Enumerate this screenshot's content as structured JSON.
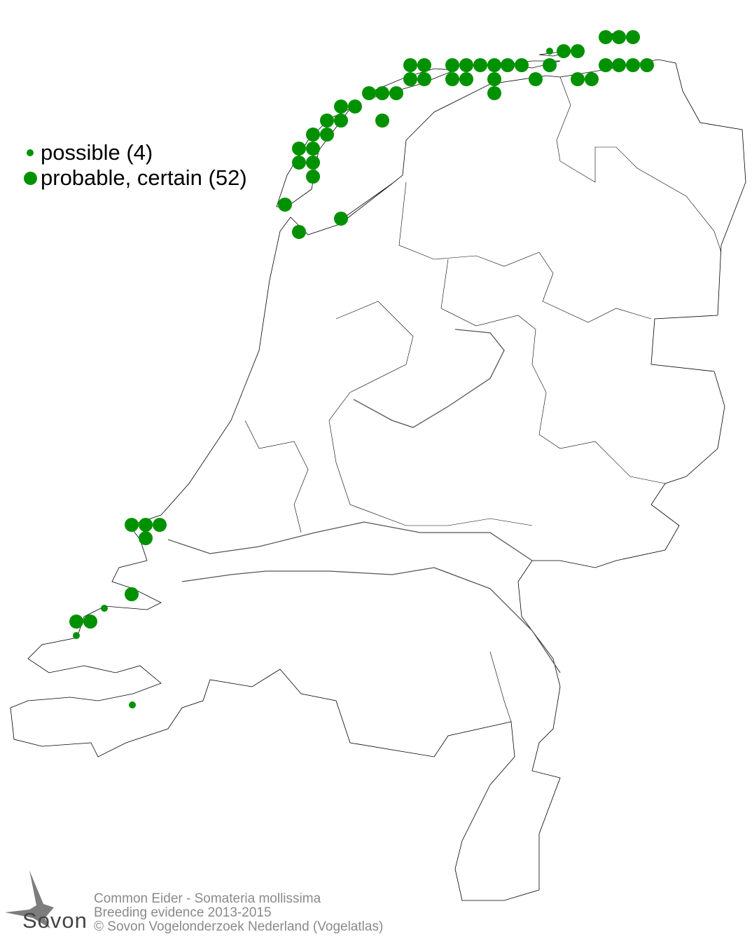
{
  "legend": {
    "items": [
      {
        "label": "possible (4)",
        "category": "possible",
        "count": 4,
        "symbol": "small-dot"
      },
      {
        "label": "probable, certain (52)",
        "category": "probable-certain",
        "count": 52,
        "symbol": "large-dot"
      }
    ]
  },
  "colors": {
    "dot": "#009100",
    "outline": "#000000",
    "footer_text": "#8a8a8a"
  },
  "footer": {
    "species": "Common Eider - Somateria mollissima",
    "subtitle": "Breeding evidence 2013-2015",
    "copyright": "© Sovon Vogelonderzoek Nederland (Vogelatlas)"
  },
  "logo": {
    "text": "Sovon",
    "icon": "swallow-icon"
  }
}
